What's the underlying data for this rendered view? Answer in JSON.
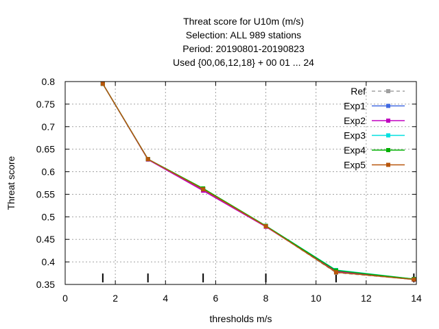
{
  "chart_data": {
    "type": "line",
    "title_lines": [
      "Threat score  for U10m (m/s)",
      "Selection: ALL    989 stations",
      "Period: 20190801-20190823",
      "Used {00,06,12,18} + 00 01 ... 24"
    ],
    "xlabel": "thresholds m/s",
    "ylabel": "Threat score",
    "xlim": [
      0,
      14
    ],
    "ylim": [
      0.35,
      0.8
    ],
    "x_ticks": [
      0,
      2,
      4,
      6,
      8,
      10,
      12,
      14
    ],
    "x_tick_labels": [
      "0",
      "2",
      "4",
      "6",
      "8",
      "10",
      "12",
      "14"
    ],
    "y_ticks": [
      0.35,
      0.4,
      0.45,
      0.5,
      0.55,
      0.6,
      0.65,
      0.7,
      0.75,
      0.8
    ],
    "y_tick_labels": [
      "0.35",
      "0.4",
      "0.45",
      "0.5",
      "0.55",
      "0.6",
      "0.65",
      "0.7",
      "0.75",
      "0.8"
    ],
    "grid": true,
    "legend_position": "top-right",
    "threshold_marks": [
      1.5,
      3.3,
      5.5,
      8.0,
      10.8,
      13.9
    ],
    "x": [
      1.5,
      3.3,
      5.5,
      8.0,
      10.8,
      13.9
    ],
    "series": [
      {
        "name": "Ref",
        "color": "#a0a0a0",
        "dashed": true,
        "values": [
          0.795,
          0.628,
          0.561,
          0.479,
          0.376,
          0.361
        ]
      },
      {
        "name": "Exp1",
        "color": "#4169e1",
        "dashed": false,
        "values": [
          0.795,
          0.628,
          0.56,
          0.479,
          0.378,
          0.361
        ]
      },
      {
        "name": "Exp2",
        "color": "#c000c0",
        "dashed": false,
        "values": [
          0.795,
          0.627,
          0.558,
          0.478,
          0.379,
          0.361
        ]
      },
      {
        "name": "Exp3",
        "color": "#00e0e0",
        "dashed": false,
        "values": [
          0.795,
          0.628,
          0.562,
          0.48,
          0.382,
          0.362
        ]
      },
      {
        "name": "Exp4",
        "color": "#00b000",
        "dashed": false,
        "values": [
          0.795,
          0.628,
          0.563,
          0.48,
          0.381,
          0.362
        ]
      },
      {
        "name": "Exp5",
        "color": "#b8560b",
        "dashed": false,
        "values": [
          0.795,
          0.628,
          0.561,
          0.479,
          0.377,
          0.361
        ]
      }
    ]
  }
}
